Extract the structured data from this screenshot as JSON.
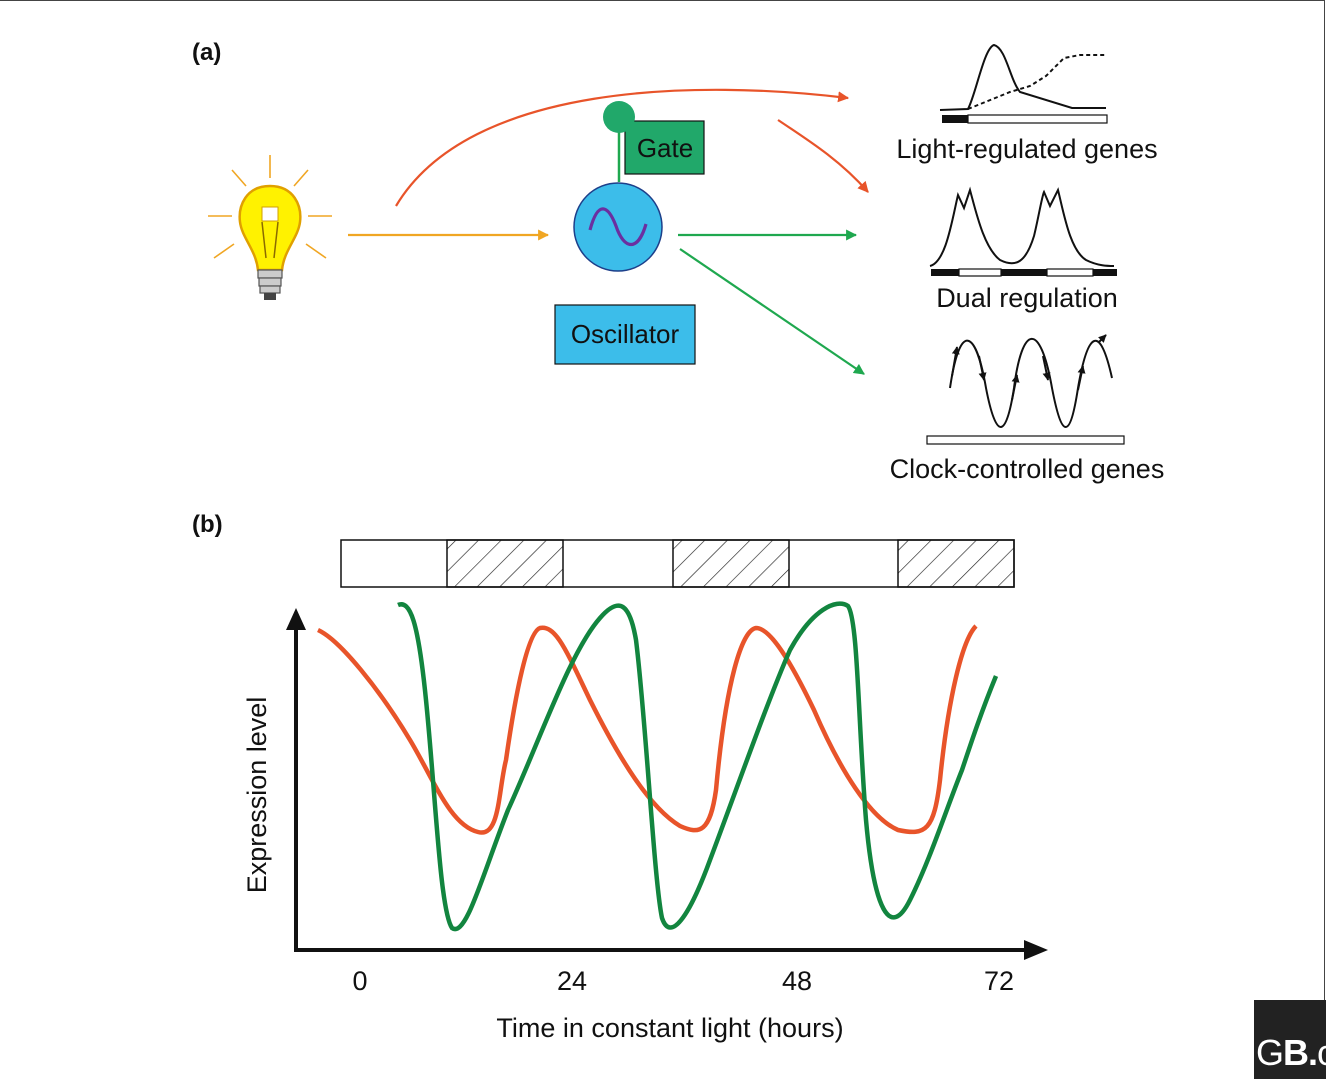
{
  "panel_a": {
    "label": "(a)",
    "gate_label": "Gate",
    "oscillator_label": "Oscillator",
    "light_regulated_label": "Light-regulated genes",
    "dual_regulation_label": "Dual regulation",
    "clock_controlled_label": "Clock-controlled genes"
  },
  "panel_b": {
    "label": "(b)",
    "ylabel": "Expression level",
    "xlabel": "Time in constant light (hours)",
    "x_ticks": [
      "0",
      "24",
      "48",
      "72"
    ]
  },
  "colors": {
    "light_arrow": "#f0a623",
    "light_direct_arrow": "#e8542a",
    "clock_arrow": "#1fa84f",
    "gate": "#21a86a",
    "oscillator": "#3cbdea",
    "orange_curve": "#e8542a",
    "green_curve": "#12853f"
  },
  "logo": {
    "text_bold": "B.",
    "text_prefix": "G",
    "text_suffix": "c"
  }
}
